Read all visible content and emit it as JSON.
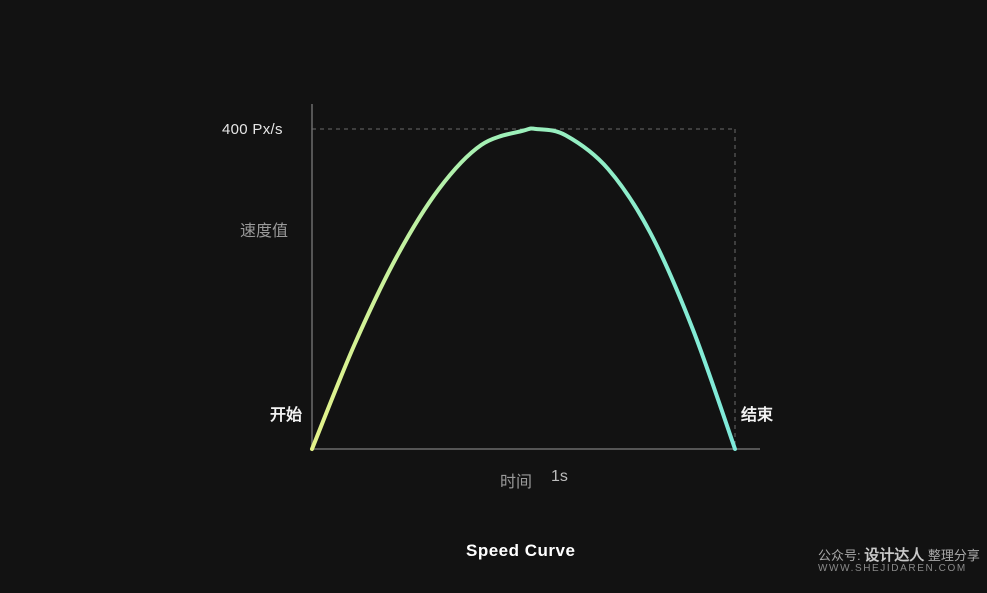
{
  "chart_data": {
    "type": "line",
    "title": "Speed Curve",
    "ylabel": "速度值",
    "xlabel": "时间",
    "x_end_label": "1s",
    "peak_label": "400 Px/s",
    "start_label": "开始",
    "end_label": "结束",
    "x": [
      0,
      0.1,
      0.2,
      0.3,
      0.4,
      0.5,
      0.53,
      0.6,
      0.7,
      0.8,
      0.9,
      1.0
    ],
    "y": [
      0,
      130,
      240,
      325,
      380,
      398,
      400,
      392,
      350,
      270,
      150,
      0
    ],
    "xlim": [
      0,
      1
    ],
    "ylim": [
      0,
      400
    ],
    "grid": false,
    "colors": {
      "curve_start": "#e4f28a",
      "curve_mid": "#9ff0b8",
      "curve_end": "#7eeadb",
      "axis": "#555555",
      "guide": "#6a6a6a"
    }
  },
  "watermark": {
    "line1_prefix": "公众号:",
    "line1_brand": "设计达人",
    "line1_suffix": "整理分享",
    "line2": "WWW.SHEJIDAREN.COM"
  }
}
